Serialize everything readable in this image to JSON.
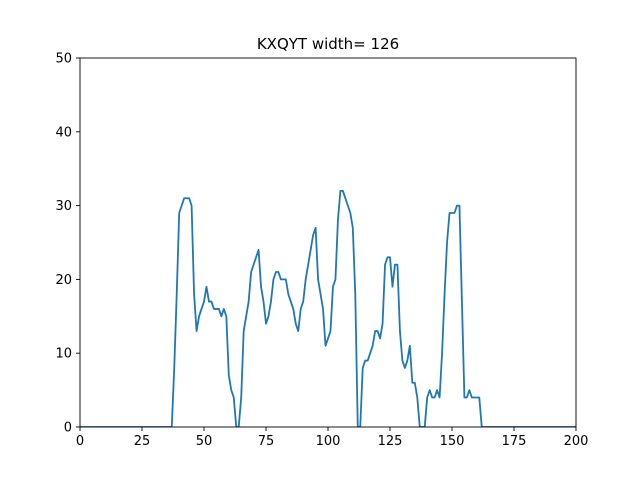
{
  "chart_data": {
    "type": "line",
    "title": "KXQYT width= 126",
    "xlabel": "",
    "ylabel": "",
    "xlim": [
      0,
      200
    ],
    "ylim": [
      0,
      50
    ],
    "xticks": [
      0,
      25,
      50,
      75,
      100,
      125,
      150,
      175,
      200
    ],
    "yticks": [
      0,
      10,
      20,
      30,
      40,
      50
    ],
    "grid": false,
    "line_color": "#1f77b4",
    "series": [
      {
        "x": [
          0,
          37,
          38,
          39,
          40,
          41,
          42,
          43,
          44,
          45,
          46,
          47,
          48,
          49,
          50,
          51,
          52,
          53,
          54,
          55,
          56,
          57,
          58,
          59,
          60,
          61,
          62,
          63,
          64,
          65,
          66,
          67,
          68,
          69,
          70,
          71,
          72,
          73,
          74,
          75,
          76,
          77,
          78,
          79,
          80,
          81,
          82,
          83,
          84,
          85,
          86,
          87,
          88,
          89,
          90,
          91,
          92,
          93,
          94,
          95,
          96,
          97,
          98,
          99,
          100,
          101,
          102,
          103,
          104,
          105,
          106,
          107,
          108,
          109,
          110,
          111,
          112,
          113,
          114,
          115,
          116,
          117,
          118,
          119,
          120,
          121,
          122,
          123,
          124,
          125,
          126,
          127,
          128,
          129,
          130,
          131,
          132,
          133,
          134,
          135,
          136,
          137,
          138,
          139,
          140,
          141,
          142,
          143,
          144,
          145,
          146,
          147,
          148,
          149,
          150,
          151,
          152,
          153,
          154,
          155,
          156,
          157,
          158,
          159,
          160,
          161,
          162,
          163,
          200
        ],
        "y": [
          0,
          0,
          8,
          18,
          29,
          30,
          31,
          31,
          31,
          30,
          18,
          13,
          15,
          16,
          17,
          19,
          17,
          17,
          16,
          16,
          16,
          15,
          16,
          15,
          7,
          5,
          4,
          0,
          0,
          4,
          13,
          15,
          17,
          21,
          22,
          23,
          24,
          19,
          17,
          14,
          15,
          17,
          20,
          21,
          21,
          20,
          20,
          20,
          18,
          17,
          16,
          14,
          13,
          16,
          17,
          20,
          22,
          24,
          26,
          27,
          20,
          18,
          16,
          11,
          12,
          13,
          19,
          20,
          28,
          32,
          32,
          31,
          30,
          29,
          27,
          18,
          0,
          0,
          8,
          9,
          9,
          10,
          11,
          13,
          13,
          12,
          14,
          22,
          23,
          23,
          19,
          22,
          22,
          13,
          9,
          8,
          9,
          11,
          6,
          6,
          4,
          0,
          0,
          0,
          4,
          5,
          4,
          4,
          5,
          4,
          10,
          18,
          25,
          29,
          29,
          29,
          30,
          30,
          17,
          4,
          4,
          5,
          4,
          4,
          4,
          4,
          0,
          0,
          0
        ]
      }
    ]
  }
}
